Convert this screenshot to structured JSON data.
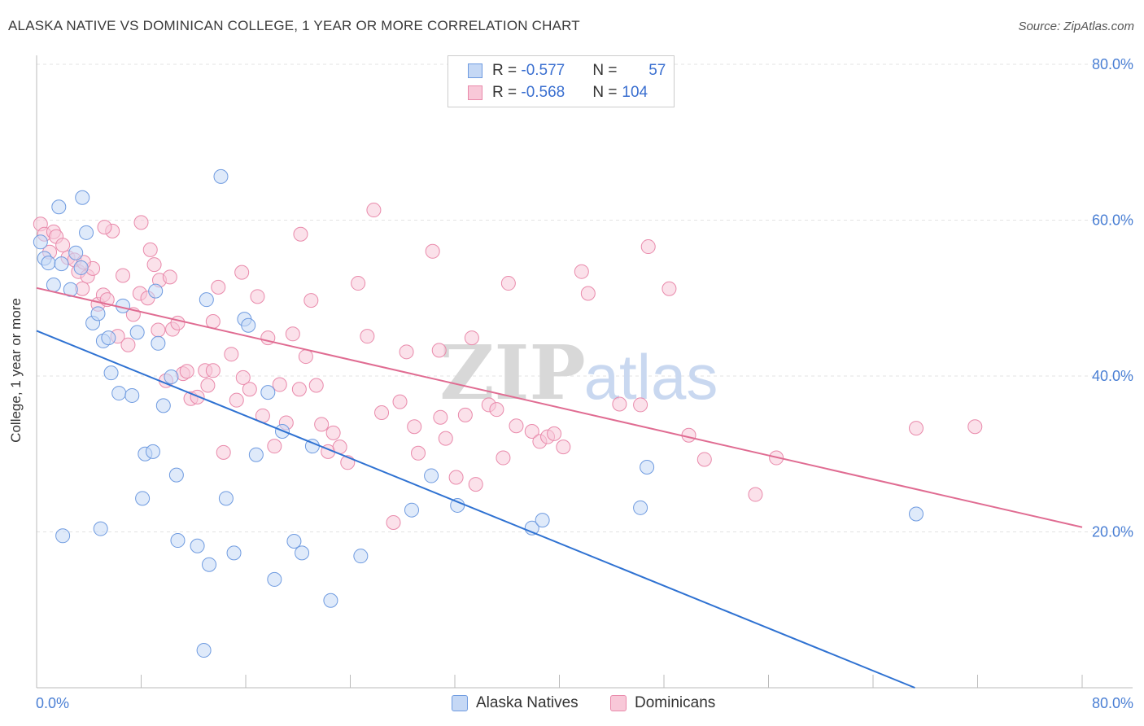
{
  "title": "ALASKA NATIVE VS DOMINICAN COLLEGE, 1 YEAR OR MORE CORRELATION CHART",
  "source": "Source: ZipAtlas.com",
  "watermark": {
    "zip": "ZIP",
    "atlas": "atlas"
  },
  "colors": {
    "blue_fill": "#c5d8f5",
    "blue_stroke": "#6f9be0",
    "blue_line": "#2f72d2",
    "pink_fill": "#f8c8d8",
    "pink_stroke": "#e98aab",
    "pink_line": "#e06c92",
    "grid": "#e3e3e3",
    "tick_text": "#4a7fd4"
  },
  "legend": {
    "row1": {
      "r_label": "R = ",
      "r_value": "-0.577",
      "n_label": "N = ",
      "n_value": "57"
    },
    "row2": {
      "r_label": "R = ",
      "r_value": "-0.568",
      "n_label": "N = ",
      "n_value": "104"
    }
  },
  "bottom_legend": {
    "series1": "Alaska Natives",
    "series2": "Dominicans"
  },
  "chart_data": {
    "type": "scatter",
    "title": "ALASKA NATIVE VS DOMINICAN COLLEGE, 1 YEAR OR MORE CORRELATION CHART",
    "xlabel": "",
    "ylabel": "College, 1 year or more",
    "xlim": [
      0,
      80
    ],
    "ylim": [
      0,
      80
    ],
    "x_tick_labels": [
      "0.0%",
      "80.0%"
    ],
    "y_tick_labels": [
      "20.0%",
      "40.0%",
      "60.0%",
      "80.0%"
    ],
    "y_ticks": [
      20,
      40,
      60,
      80
    ],
    "grid": true,
    "series": [
      {
        "name": "Alaska Natives",
        "r": -0.577,
        "n": 57,
        "trend": {
          "x0": 0,
          "y0": 45.8,
          "x1": 67.2,
          "y1": 0
        },
        "points": [
          [
            0.3,
            57.2
          ],
          [
            0.6,
            55.1
          ],
          [
            0.9,
            54.5
          ],
          [
            1.3,
            51.7
          ],
          [
            1.7,
            61.7
          ],
          [
            1.9,
            54.4
          ],
          [
            2.6,
            51.1
          ],
          [
            3.0,
            55.8
          ],
          [
            3.4,
            53.9
          ],
          [
            3.5,
            62.9
          ],
          [
            3.8,
            58.4
          ],
          [
            4.3,
            46.8
          ],
          [
            4.7,
            48.0
          ],
          [
            5.1,
            44.5
          ],
          [
            5.5,
            44.9
          ],
          [
            5.7,
            40.4
          ],
          [
            6.3,
            37.8
          ],
          [
            6.6,
            49.0
          ],
          [
            7.3,
            37.5
          ],
          [
            7.7,
            45.6
          ],
          [
            8.1,
            24.3
          ],
          [
            8.3,
            30.0
          ],
          [
            8.9,
            30.3
          ],
          [
            9.1,
            50.9
          ],
          [
            9.3,
            44.2
          ],
          [
            9.7,
            36.2
          ],
          [
            10.3,
            39.9
          ],
          [
            10.7,
            27.3
          ],
          [
            12.3,
            18.2
          ],
          [
            12.8,
            4.8
          ],
          [
            13.2,
            15.8
          ],
          [
            14.1,
            65.6
          ],
          [
            14.5,
            24.3
          ],
          [
            15.1,
            17.3
          ],
          [
            15.9,
            47.3
          ],
          [
            16.8,
            29.9
          ],
          [
            17.7,
            37.9
          ],
          [
            18.2,
            13.9
          ],
          [
            18.8,
            32.9
          ],
          [
            19.7,
            18.8
          ],
          [
            20.3,
            17.3
          ],
          [
            21.1,
            31.0
          ],
          [
            22.5,
            11.2
          ],
          [
            24.8,
            16.9
          ],
          [
            28.7,
            22.8
          ],
          [
            30.2,
            27.2
          ],
          [
            32.2,
            23.4
          ],
          [
            37.9,
            20.5
          ],
          [
            38.7,
            21.5
          ],
          [
            46.2,
            23.1
          ],
          [
            46.7,
            28.3
          ],
          [
            67.3,
            22.3
          ],
          [
            2.0,
            19.5
          ],
          [
            4.9,
            20.4
          ],
          [
            10.8,
            18.9
          ],
          [
            16.2,
            46.5
          ],
          [
            13.0,
            49.8
          ]
        ]
      },
      {
        "name": "Dominicans",
        "r": -0.568,
        "n": 104,
        "trend": {
          "x0": 0,
          "y0": 51.3,
          "x1": 80,
          "y1": 20.6
        },
        "points": [
          [
            0.3,
            59.5
          ],
          [
            0.6,
            58.2
          ],
          [
            1.0,
            55.9
          ],
          [
            1.3,
            58.5
          ],
          [
            1.5,
            57.9
          ],
          [
            2.0,
            56.8
          ],
          [
            2.4,
            55.2
          ],
          [
            2.9,
            54.9
          ],
          [
            3.2,
            53.4
          ],
          [
            3.5,
            51.2
          ],
          [
            3.9,
            52.8
          ],
          [
            4.3,
            53.8
          ],
          [
            4.7,
            49.2
          ],
          [
            5.1,
            50.4
          ],
          [
            5.4,
            49.8
          ],
          [
            5.8,
            58.6
          ],
          [
            6.2,
            45.1
          ],
          [
            6.6,
            52.9
          ],
          [
            7.0,
            44.0
          ],
          [
            7.4,
            47.9
          ],
          [
            7.9,
            50.6
          ],
          [
            8.0,
            59.7
          ],
          [
            8.5,
            50.0
          ],
          [
            8.7,
            56.2
          ],
          [
            9.0,
            54.3
          ],
          [
            9.4,
            52.3
          ],
          [
            9.9,
            39.4
          ],
          [
            10.2,
            52.7
          ],
          [
            10.4,
            46.0
          ],
          [
            10.8,
            46.8
          ],
          [
            11.2,
            40.3
          ],
          [
            11.5,
            40.6
          ],
          [
            11.8,
            37.1
          ],
          [
            12.3,
            37.3
          ],
          [
            12.9,
            40.7
          ],
          [
            13.5,
            40.7
          ],
          [
            13.9,
            51.4
          ],
          [
            14.3,
            30.2
          ],
          [
            14.9,
            42.8
          ],
          [
            15.3,
            36.9
          ],
          [
            15.7,
            53.3
          ],
          [
            16.3,
            38.3
          ],
          [
            16.9,
            50.2
          ],
          [
            17.3,
            34.9
          ],
          [
            17.7,
            44.9
          ],
          [
            18.2,
            31.0
          ],
          [
            18.6,
            38.9
          ],
          [
            19.1,
            34.0
          ],
          [
            19.6,
            45.4
          ],
          [
            20.1,
            38.3
          ],
          [
            20.6,
            42.5
          ],
          [
            21.0,
            49.7
          ],
          [
            21.4,
            38.8
          ],
          [
            21.8,
            33.8
          ],
          [
            22.3,
            30.3
          ],
          [
            22.7,
            32.7
          ],
          [
            23.2,
            30.9
          ],
          [
            23.8,
            28.9
          ],
          [
            24.6,
            51.9
          ],
          [
            25.3,
            45.1
          ],
          [
            25.8,
            61.3
          ],
          [
            26.4,
            35.3
          ],
          [
            27.3,
            21.2
          ],
          [
            27.8,
            36.7
          ],
          [
            28.3,
            43.1
          ],
          [
            28.9,
            33.5
          ],
          [
            29.2,
            30.1
          ],
          [
            30.3,
            56.0
          ],
          [
            30.8,
            43.3
          ],
          [
            31.3,
            32.0
          ],
          [
            32.1,
            27.0
          ],
          [
            32.8,
            35.0
          ],
          [
            33.3,
            44.9
          ],
          [
            33.6,
            26.1
          ],
          [
            34.6,
            36.3
          ],
          [
            35.2,
            35.7
          ],
          [
            35.7,
            29.5
          ],
          [
            36.1,
            51.9
          ],
          [
            36.7,
            33.6
          ],
          [
            37.9,
            32.9
          ],
          [
            38.5,
            31.6
          ],
          [
            39.1,
            32.2
          ],
          [
            39.6,
            32.6
          ],
          [
            40.3,
            30.9
          ],
          [
            41.7,
            53.4
          ],
          [
            42.2,
            50.6
          ],
          [
            44.6,
            36.4
          ],
          [
            46.2,
            36.3
          ],
          [
            46.8,
            56.6
          ],
          [
            48.4,
            51.2
          ],
          [
            49.9,
            32.4
          ],
          [
            51.1,
            29.3
          ],
          [
            55.0,
            24.8
          ],
          [
            56.6,
            29.5
          ],
          [
            67.3,
            33.3
          ],
          [
            71.8,
            33.5
          ],
          [
            5.2,
            59.1
          ],
          [
            13.5,
            47.0
          ],
          [
            15.8,
            39.8
          ],
          [
            20.2,
            58.2
          ],
          [
            13.1,
            38.8
          ],
          [
            9.3,
            45.9
          ],
          [
            30.9,
            34.7
          ],
          [
            3.6,
            54.6
          ]
        ]
      }
    ]
  }
}
